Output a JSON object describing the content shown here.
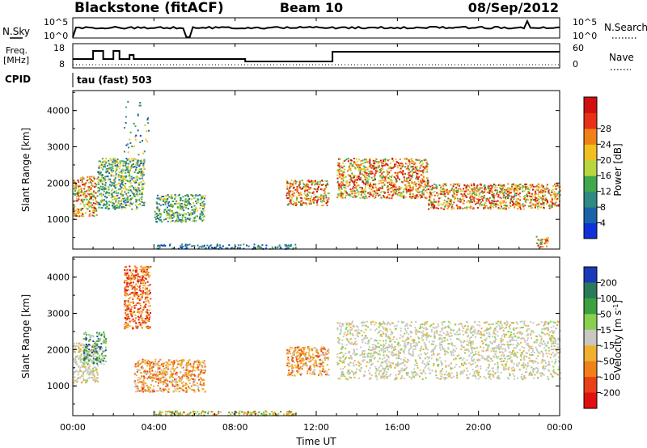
{
  "header": {
    "station": "Blackstone (fitACF)",
    "beam": "Beam 10",
    "date": "08/Sep/2012",
    "cpid_label": "CPID",
    "cpid_value": "tau (fast) 503"
  },
  "strips": {
    "nsky_label": "N.Sky",
    "nsky_ticks": [
      "10^5",
      "10^0"
    ],
    "nsearch_label": "N.Search",
    "nsearch_ticks": [
      "10^5",
      "10^0"
    ],
    "freq_label_1": "Freq.",
    "freq_label_2": "[MHz]",
    "freq_ticks": [
      "18",
      "8"
    ],
    "nave_label": "Nave",
    "nave_ticks": [
      "60",
      "0"
    ]
  },
  "chart_data": [
    {
      "type": "heatmap",
      "panel": "power",
      "x_range_hours": [
        0,
        24
      ],
      "ylabel": "Slant Range [km]",
      "y_range_km": [
        180,
        4550
      ],
      "y_ticks": [
        "1000",
        "2000",
        "3000",
        "4000"
      ],
      "colorbar": {
        "label": "Power [dB]",
        "ticks": [
          "4",
          "8",
          "12",
          "16",
          "20",
          "24",
          "28"
        ],
        "colors": [
          "#1030d8",
          "#1a63a8",
          "#2f8a82",
          "#41a84c",
          "#b8d640",
          "#f0c020",
          "#f08018",
          "#e83018",
          "#d01010"
        ]
      },
      "features": [
        {
          "t": [
            0.0,
            1.2
          ],
          "range_km": [
            1100,
            2200
          ],
          "level": "high"
        },
        {
          "t": [
            1.2,
            3.5
          ],
          "range_km": [
            1300,
            2700
          ],
          "level": "medium"
        },
        {
          "t": [
            2.5,
            3.8
          ],
          "range_km": [
            2600,
            4350
          ],
          "level": "sparse"
        },
        {
          "t": [
            4.0,
            6.5
          ],
          "range_km": [
            950,
            1700
          ],
          "level": "medium"
        },
        {
          "t": [
            4.0,
            11.0
          ],
          "range_km": [
            200,
            330
          ],
          "level": "low"
        },
        {
          "t": [
            10.5,
            12.6
          ],
          "range_km": [
            1400,
            2100
          ],
          "level": "high"
        },
        {
          "t": [
            13.0,
            17.5
          ],
          "range_km": [
            1600,
            2700
          ],
          "level": "high"
        },
        {
          "t": [
            17.5,
            24.0
          ],
          "range_km": [
            1300,
            2000
          ],
          "level": "high"
        },
        {
          "t": [
            22.8,
            23.4
          ],
          "range_km": [
            250,
            550
          ],
          "level": "high"
        }
      ]
    },
    {
      "type": "heatmap",
      "panel": "velocity",
      "x_range_hours": [
        0,
        24
      ],
      "ylabel": "Slant Range [km]",
      "y_range_km": [
        180,
        4550
      ],
      "y_ticks": [
        "1000",
        "2000",
        "3000",
        "4000"
      ],
      "colorbar": {
        "label": "Velocity [m s^-1]",
        "ticks": [
          "200",
          "100",
          "50",
          "15",
          "-15",
          "-50",
          "-100",
          "-200"
        ],
        "colors": [
          "#1a3ab8",
          "#2a7a5a",
          "#3aa040",
          "#8ad050",
          "#c8c8c0",
          "#f0b030",
          "#f08018",
          "#e84018",
          "#e01010"
        ]
      },
      "features": [
        {
          "t": [
            0.0,
            1.2
          ],
          "range_km": [
            1100,
            2200
          ],
          "class": "ground"
        },
        {
          "t": [
            0.5,
            1.6
          ],
          "range_km": [
            1600,
            2500
          ],
          "class": "green"
        },
        {
          "t": [
            2.5,
            3.8
          ],
          "range_km": [
            2600,
            4350
          ],
          "class": "red"
        },
        {
          "t": [
            3.0,
            6.5
          ],
          "range_km": [
            850,
            1750
          ],
          "class": "orange"
        },
        {
          "t": [
            4.0,
            11.0
          ],
          "range_km": [
            200,
            330
          ],
          "class": "orange-green"
        },
        {
          "t": [
            10.5,
            12.6
          ],
          "range_km": [
            1300,
            2100
          ],
          "class": "orange"
        },
        {
          "t": [
            13.0,
            24.0
          ],
          "range_km": [
            1200,
            2800
          ],
          "class": "ground"
        }
      ]
    }
  ],
  "x_axis": {
    "ticks": [
      "00:00",
      "04:00",
      "08:00",
      "12:00",
      "16:00",
      "20:00",
      "00:00"
    ],
    "label": "Time UT"
  }
}
